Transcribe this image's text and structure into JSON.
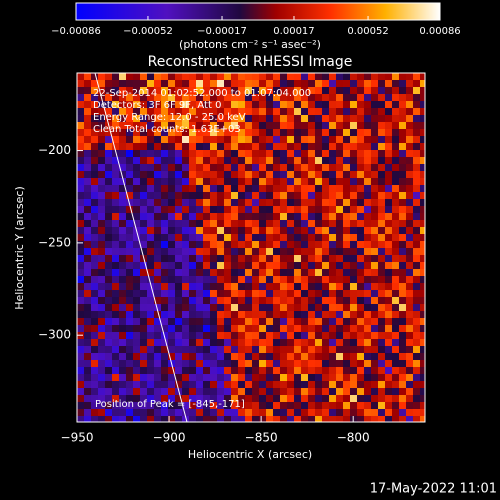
{
  "chart_data": {
    "type": "image",
    "title": "Reconstructed RHESSI Image",
    "colorbar_label": "(photons cm⁻² s⁻¹ asec⁻²)",
    "clim": [
      -0.00086,
      0.00086
    ],
    "cticks": [
      {
        "value": -0.00086,
        "label": "−0.00086"
      },
      {
        "value": -0.00052,
        "label": "−0.00052"
      },
      {
        "value": -0.00017,
        "label": "−0.00017"
      },
      {
        "value": 0.00017,
        "label": "0.00017"
      },
      {
        "value": 0.00052,
        "label": "0.00052"
      },
      {
        "value": 0.00086,
        "label": "0.00086"
      }
    ],
    "x_label": "Heliocentric X (arcsec)",
    "y_label": "Heliocentric Y (arcsec)",
    "xlim": [
      -950,
      -761
    ],
    "ylim": [
      -347,
      -158
    ],
    "xticks": [
      {
        "value": -950,
        "label": "−950"
      },
      {
        "value": -900,
        "label": "−900"
      },
      {
        "value": -850,
        "label": "−850"
      },
      {
        "value": -800,
        "label": "−800"
      }
    ],
    "yticks": [
      {
        "value": -200,
        "label": "−200"
      },
      {
        "value": -250,
        "label": "−250"
      },
      {
        "value": -300,
        "label": "−300"
      }
    ],
    "annotations": [
      "22-Sep-2014 01:02:52.000 to 01:07:04.000",
      "Detectors: 3F 6F 9F, Att 0",
      "Energy Range: 12.0 - 25.0 keV",
      "Clean     Total counts: 1.63E+03"
    ],
    "peak_label": "Position of Peak = [-845,-171]",
    "timestamp": "17-May-2022 11:01"
  }
}
